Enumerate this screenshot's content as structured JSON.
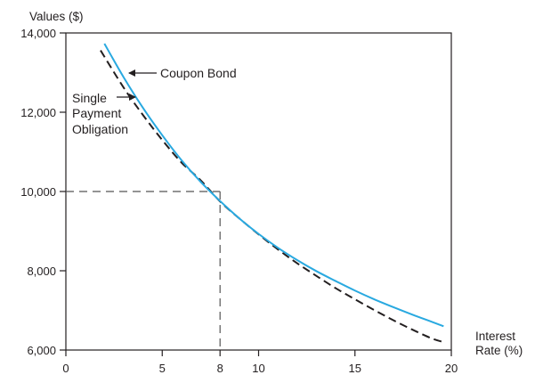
{
  "colors": {
    "coupon_bond": "#29a9e0",
    "single_payment": "#231f20",
    "axis": "#231f20",
    "guide": "#555555"
  },
  "chart_data": {
    "type": "line",
    "ylabel": "Values ($)",
    "xlabel_lines": [
      "Interest",
      "Rate (%)"
    ],
    "xlim": [
      0,
      20
    ],
    "ylim": [
      6000,
      14000
    ],
    "x_ticks": [
      0,
      5,
      8,
      10,
      15,
      20
    ],
    "x_tick_labels": [
      "0",
      "5",
      "8",
      "10",
      "15",
      "20"
    ],
    "y_ticks": [
      6000,
      8000,
      10000,
      12000,
      14000
    ],
    "y_tick_labels": [
      "6,000",
      "8,000",
      "10,000",
      "12,000",
      "14,000"
    ],
    "grid": false,
    "series": [
      {
        "name": "Coupon Bond",
        "style": "solid",
        "x": [
          2,
          3,
          4,
          5,
          6,
          7,
          8,
          9,
          10,
          11,
          12,
          13,
          14,
          15,
          16,
          17,
          18,
          19,
          19.6
        ],
        "y": [
          13730,
          12880,
          12110,
          11420,
          10790,
          10240,
          9760,
          9320,
          8930,
          8580,
          8270,
          7990,
          7740,
          7500,
          7280,
          7080,
          6890,
          6710,
          6600
        ]
      },
      {
        "name": "Single Payment Obligation",
        "style": "dashed",
        "x": [
          1.8,
          3,
          4,
          5,
          6,
          7,
          8,
          9,
          10,
          11,
          12,
          13,
          14,
          15,
          16,
          17,
          18,
          19,
          19.6
        ],
        "y": [
          13560,
          12620,
          11930,
          11300,
          10730,
          10280,
          9750,
          9320,
          8920,
          8540,
          8190,
          7870,
          7560,
          7280,
          7010,
          6750,
          6510,
          6290,
          6200
        ]
      }
    ],
    "reference_point": {
      "x": 8,
      "y": 10000
    },
    "annotations": [
      {
        "text": "Coupon Bond",
        "x": 2.75,
        "y": 13020
      },
      {
        "text_lines": [
          "Single",
          "Payment",
          "Obligation"
        ],
        "x": 3.6,
        "y": 12620
      }
    ]
  }
}
